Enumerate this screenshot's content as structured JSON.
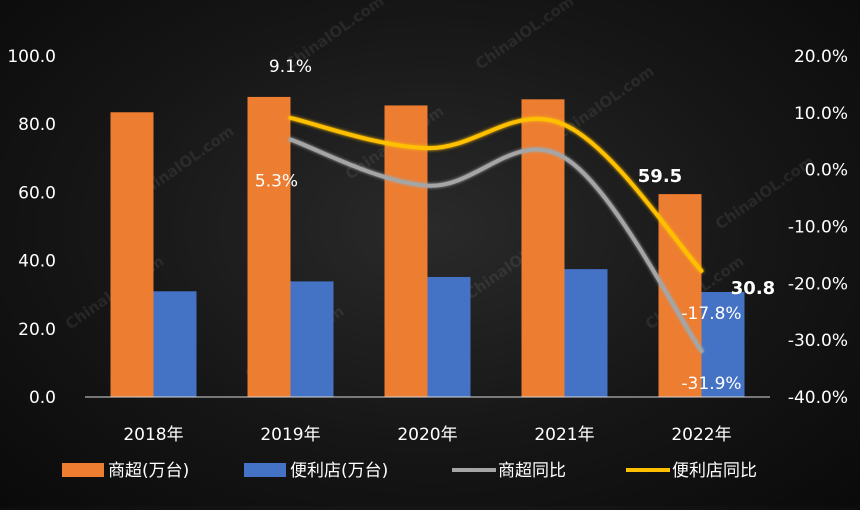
{
  "chart_data": {
    "type": "bar",
    "categories": [
      "2018年",
      "2019年",
      "2020年",
      "2021年",
      "2022年"
    ],
    "series": [
      {
        "name": "商超(万台)",
        "kind": "bar",
        "axis": "left",
        "color": "#ED7D31",
        "values": [
          83.5,
          88.0,
          85.5,
          87.3,
          59.5
        ]
      },
      {
        "name": "便利店(万台)",
        "kind": "bar",
        "axis": "left",
        "color": "#4472C4",
        "values": [
          31.0,
          33.9,
          35.2,
          37.5,
          30.8
        ]
      },
      {
        "name": "商超同比",
        "kind": "line",
        "axis": "right",
        "color": "#A5A5A5",
        "values": [
          null,
          5.3,
          -2.8,
          2.1,
          -31.9
        ]
      },
      {
        "name": "便利店同比",
        "kind": "line",
        "axis": "right",
        "color": "#FFC000",
        "values": [
          null,
          9.1,
          3.8,
          7.9,
          -17.8
        ]
      }
    ],
    "y_left": {
      "range": [
        0,
        100
      ],
      "ticks": [
        "0.0",
        "20.0",
        "40.0",
        "60.0",
        "80.0",
        "100.0"
      ]
    },
    "y_right": {
      "range": [
        -40,
        20
      ],
      "ticks": [
        "20.0%",
        "10.0%",
        "0.0%",
        "-10.0%",
        "-20.0%",
        "-30.0%",
        "-40.0%"
      ]
    },
    "data_labels": [
      {
        "text": "9.1%",
        "series": 3,
        "index": 1,
        "bold": false
      },
      {
        "text": "5.3%",
        "series": 2,
        "index": 1,
        "bold": false
      },
      {
        "text": "59.5",
        "series": 0,
        "index": 4,
        "bold": true
      },
      {
        "text": "30.8",
        "series": 1,
        "index": 4,
        "bold": true
      },
      {
        "text": "-17.8%",
        "series": 3,
        "index": 4,
        "bold": false
      },
      {
        "text": "-31.9%",
        "series": 2,
        "index": 4,
        "bold": false
      }
    ],
    "legend_position": "bottom",
    "grid": false,
    "watermark": "ChinaIOL.com"
  }
}
